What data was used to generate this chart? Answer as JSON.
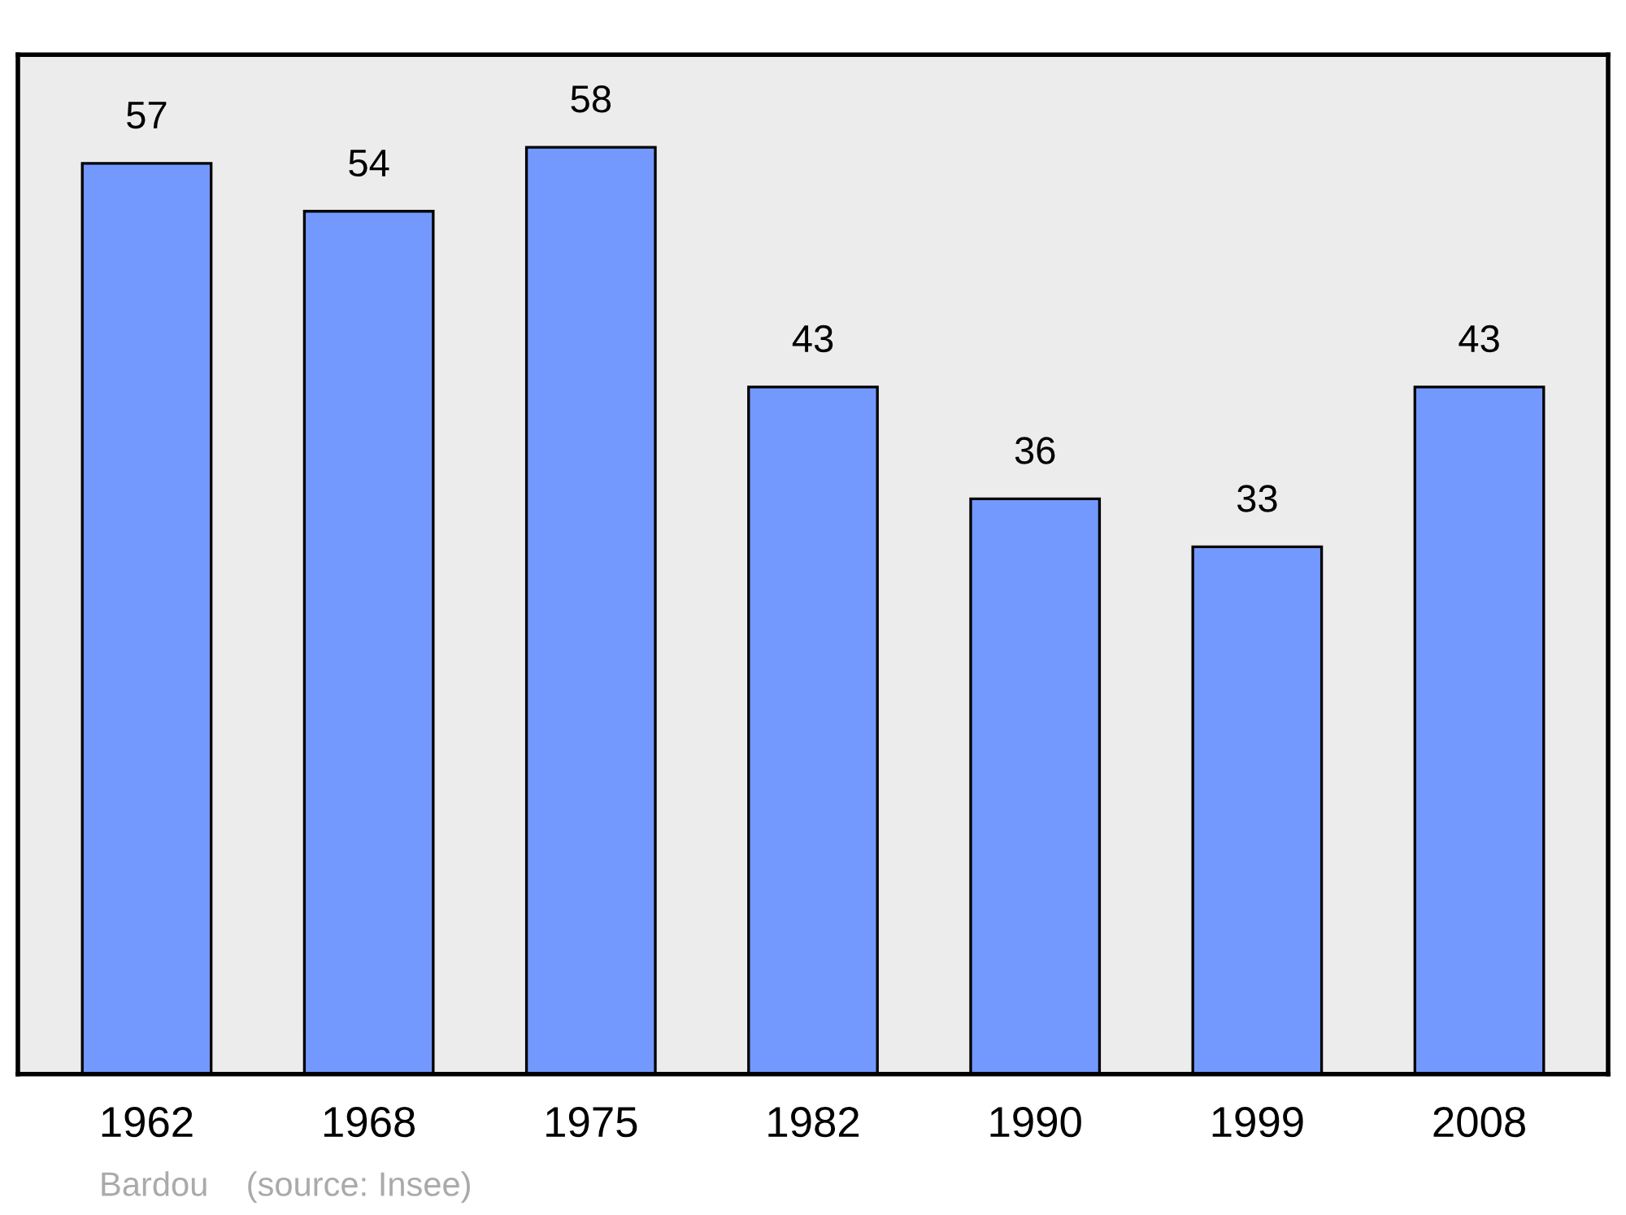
{
  "chart_data": {
    "type": "bar",
    "categories": [
      "1962",
      "1968",
      "1975",
      "1982",
      "1990",
      "1999",
      "2008"
    ],
    "values": [
      57,
      54,
      58,
      43,
      36,
      33,
      43
    ],
    "color": "#7399ff",
    "data_labels": true,
    "grid": false,
    "legend": false,
    "tick_labels": "x",
    "annotations": [
      "Bardou    (source: Insee)"
    ]
  }
}
